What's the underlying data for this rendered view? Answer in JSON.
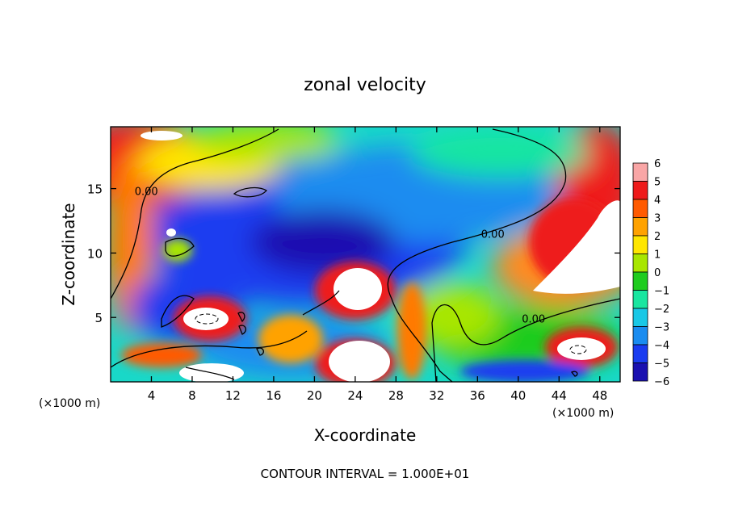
{
  "chart_data": {
    "type": "heatmap",
    "title": "zonal velocity",
    "xlabel": "X-coordinate",
    "ylabel": "Z-coordinate",
    "x_unit_left": "(×1000 m)",
    "x_unit_right": "(×1000 m)",
    "x_ticks": [
      4,
      8,
      12,
      16,
      20,
      24,
      28,
      32,
      36,
      40,
      44,
      48
    ],
    "y_ticks": [
      5,
      10,
      15
    ],
    "xlim": [
      0,
      50
    ],
    "ylim": [
      0,
      19.8
    ],
    "colorbar": {
      "levels": [
        6,
        5,
        4,
        3,
        2,
        1,
        0,
        -1,
        -2,
        -3,
        -4,
        -5,
        -6
      ],
      "colors": [
        "#f9a6a6",
        "#ee1a1a",
        "#ff5a00",
        "#ffa200",
        "#ffe600",
        "#a8e600",
        "#1fcc1f",
        "#19e6a0",
        "#19c8e6",
        "#1a8cf0",
        "#1a3cf0",
        "#1a10b0",
        "#7a10b0"
      ],
      "range": [
        -6,
        6
      ]
    },
    "contour_labels": [
      {
        "text": "0.00",
        "x": 3.5,
        "y": 14.5
      },
      {
        "text": "0.00",
        "x": 37.5,
        "y": 11.2
      },
      {
        "text": "0.00",
        "x": 41.5,
        "y": 4.6
      }
    ],
    "footer": "CONTOUR INTERVAL = 1.000E+01"
  }
}
